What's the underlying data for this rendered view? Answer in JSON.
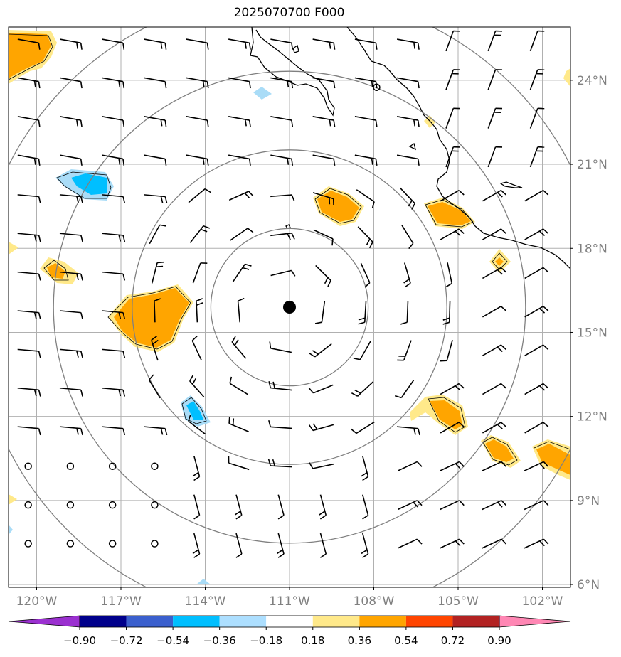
{
  "title": "2025070700 F000",
  "map": {
    "lon_range": [
      -121,
      -101
    ],
    "lat_range": [
      5.9,
      25.9
    ],
    "lon_ticks": [
      {
        "value": -120,
        "label": "120°W"
      },
      {
        "value": -117,
        "label": "117°W"
      },
      {
        "value": -114,
        "label": "114°W"
      },
      {
        "value": -111,
        "label": "111°W"
      },
      {
        "value": -108,
        "label": "108°W"
      },
      {
        "value": -105,
        "label": "105°W"
      },
      {
        "value": -102,
        "label": "102°W"
      }
    ],
    "lat_ticks": [
      {
        "value": 24,
        "label": "24°N"
      },
      {
        "value": 21,
        "label": "21°N"
      },
      {
        "value": 18,
        "label": "18°N"
      },
      {
        "value": 15,
        "label": "15°N"
      },
      {
        "value": 12,
        "label": "12°N"
      },
      {
        "value": 9,
        "label": "9°N"
      },
      {
        "value": 6,
        "label": "6°N"
      }
    ],
    "grid": true,
    "storm_center": {
      "lon": -111.0,
      "lat": 15.9
    },
    "range_rings_deg": [
      2.8,
      5.6,
      8.4,
      11.2
    ],
    "colors": {
      "ring": "#808080",
      "grid": "#b0b0b0",
      "coast": "#000000",
      "tick_label": "#808080",
      "pos_light": "#ffe98a",
      "pos_mid": "#ffa500",
      "neg_light": "#a9dcf7",
      "neg_mid": "#00bfff"
    }
  },
  "colorbar": {
    "bounds": [
      "−0.90",
      "−0.72",
      "−0.54",
      "−0.36",
      "−0.18",
      "0.18",
      "0.36",
      "0.54",
      "0.72",
      "0.90"
    ],
    "colors": [
      "#9b30d0",
      "#00008b",
      "#3a5fcd",
      "#00bfff",
      "#addfff",
      "#ffffff",
      "#ffe98a",
      "#ffa500",
      "#ff4500",
      "#b22222",
      "#ff87b4"
    ],
    "extend": "both"
  }
}
